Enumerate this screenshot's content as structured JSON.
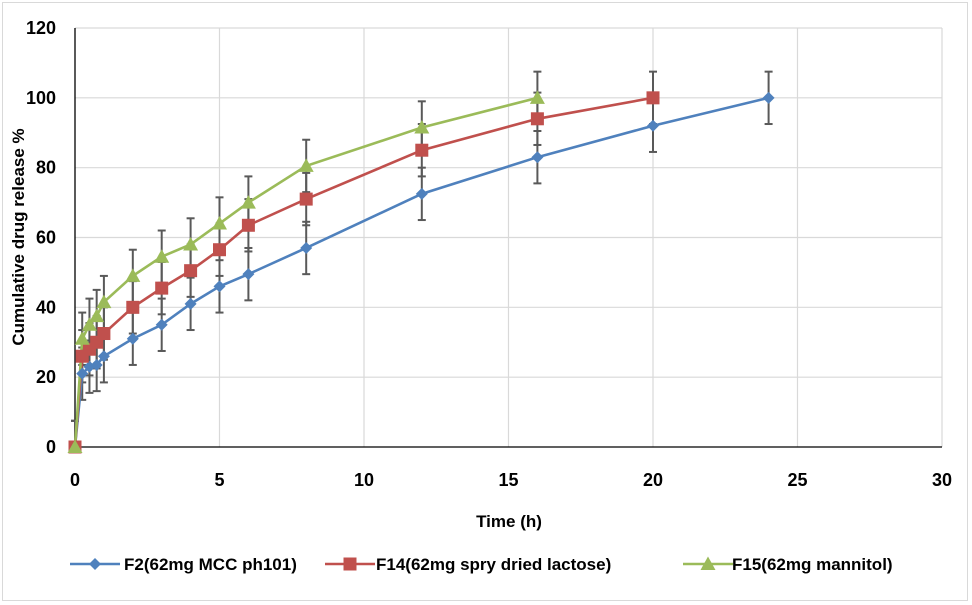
{
  "chart_data": {
    "type": "line",
    "title": "",
    "xlabel": "Time (h)",
    "ylabel": "Cumulative drug release %",
    "xlim": [
      0,
      30
    ],
    "ylim": [
      0,
      120
    ],
    "xticks": [
      0,
      5,
      10,
      15,
      20,
      25,
      30
    ],
    "yticks": [
      0,
      20,
      40,
      60,
      80,
      100,
      120
    ],
    "xtick_labels": [
      "0",
      "5",
      "10",
      "15",
      "20",
      "25",
      "30"
    ],
    "ytick_labels": [
      "0",
      "20",
      "40",
      "60",
      "80",
      "100",
      "120"
    ],
    "grid": true,
    "legend_position": "bottom",
    "error_bars": true,
    "series": [
      {
        "name": "F2(62mg MCC ph101)",
        "color": "#4f81bd",
        "marker": "diamond",
        "x": [
          0,
          0.25,
          0.5,
          0.75,
          1,
          2,
          3,
          4,
          5,
          6,
          8,
          12,
          16,
          20,
          24
        ],
        "y": [
          0,
          21,
          23,
          23.5,
          26,
          31,
          35,
          41,
          46,
          49.5,
          57,
          72.5,
          83,
          92,
          100
        ],
        "err": [
          7.5,
          7.5,
          7.5,
          7.5,
          7.5,
          7.5,
          7.5,
          7.5,
          7.5,
          7.5,
          7.5,
          7.5,
          7.5,
          7.5,
          7.5
        ]
      },
      {
        "name": "F14(62mg spry dried lactose)",
        "color": "#c0504d",
        "marker": "square",
        "x": [
          0,
          0.25,
          0.5,
          0.75,
          1,
          2,
          3,
          4,
          5,
          6,
          8,
          12,
          16,
          20
        ],
        "y": [
          0,
          26,
          28,
          30,
          32.5,
          40,
          45.5,
          50.5,
          56.5,
          63.5,
          71,
          85,
          94,
          100
        ],
        "err": [
          7.5,
          7.5,
          7.5,
          7.5,
          7.5,
          7.5,
          7.5,
          7.5,
          7.5,
          7.5,
          7.5,
          7.5,
          7.5,
          7.5
        ]
      },
      {
        "name": "F15(62mg mannitol)",
        "color": "#9bbb59",
        "marker": "triangle",
        "x": [
          0,
          0.25,
          0.5,
          0.75,
          1,
          2,
          3,
          4,
          5,
          6,
          8,
          12,
          16
        ],
        "y": [
          0,
          31,
          35,
          37.5,
          41.5,
          49,
          54.5,
          58,
          64,
          70,
          80.5,
          91.5,
          100
        ],
        "err": [
          7.5,
          7.5,
          7.5,
          7.5,
          7.5,
          7.5,
          7.5,
          7.5,
          7.5,
          7.5,
          7.5,
          7.5,
          7.5
        ]
      }
    ]
  }
}
